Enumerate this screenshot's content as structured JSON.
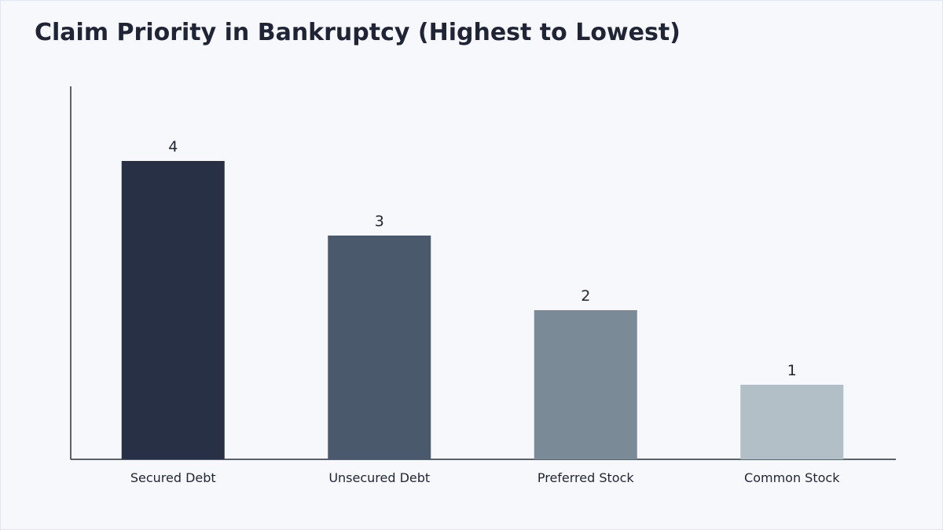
{
  "chart_data": {
    "type": "bar",
    "title": "Claim Priority in Bankruptcy (Highest to Lowest)",
    "categories": [
      "Secured Debt",
      "Unsecured Debt",
      "Preferred Stock",
      "Common Stock"
    ],
    "values": [
      4,
      3,
      2,
      1
    ],
    "data_labels": [
      "4",
      "3",
      "2",
      "1"
    ],
    "colors": [
      "#283046",
      "#4a5a6c",
      "#7a8a96",
      "#b2bfc6"
    ],
    "ylim": [
      0,
      5
    ],
    "grid": false,
    "legend": "none",
    "xlabel": "",
    "ylabel": ""
  }
}
